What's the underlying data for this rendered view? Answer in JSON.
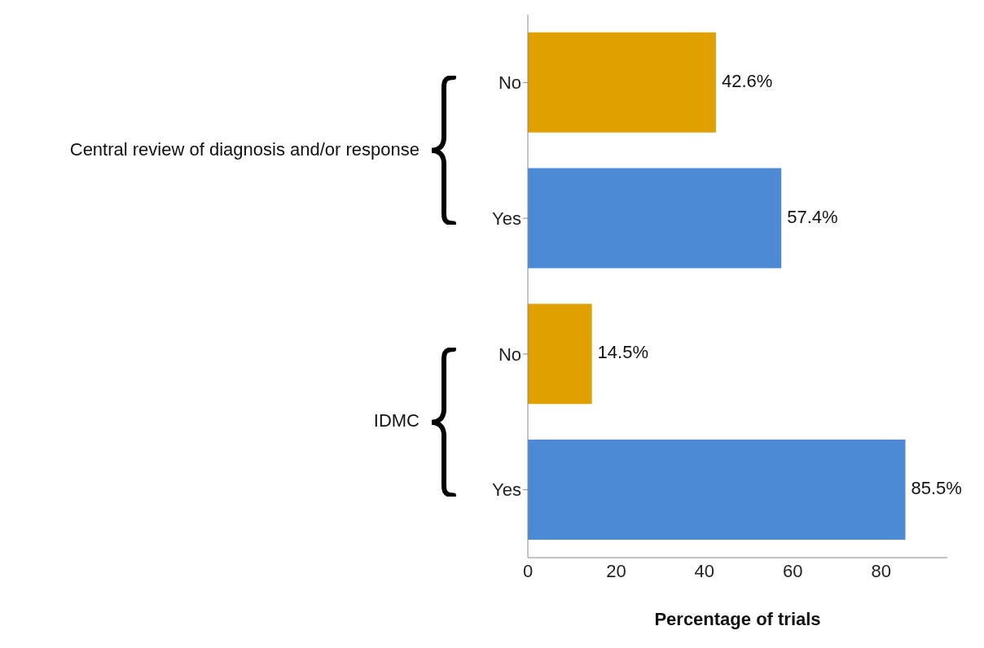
{
  "chart_data": {
    "type": "bar",
    "orientation": "horizontal",
    "categories": [
      "No",
      "Yes",
      "No",
      "Yes"
    ],
    "values": [
      42.6,
      57.4,
      14.5,
      85.5
    ],
    "colors": [
      "#e0a000",
      "#4d8ad6",
      "#e0a000",
      "#4d8ad6"
    ],
    "value_labels": [
      "42.6%",
      "57.4%",
      "14.5%",
      "85.5%"
    ],
    "xlim": [
      0,
      95
    ],
    "xticks": [
      0,
      20,
      40,
      60,
      80
    ],
    "xlabel": "Percentage of trials",
    "annotations": [
      "Central review of diagnosis and/or response",
      "IDMC"
    ],
    "grid": false,
    "legend": false
  }
}
